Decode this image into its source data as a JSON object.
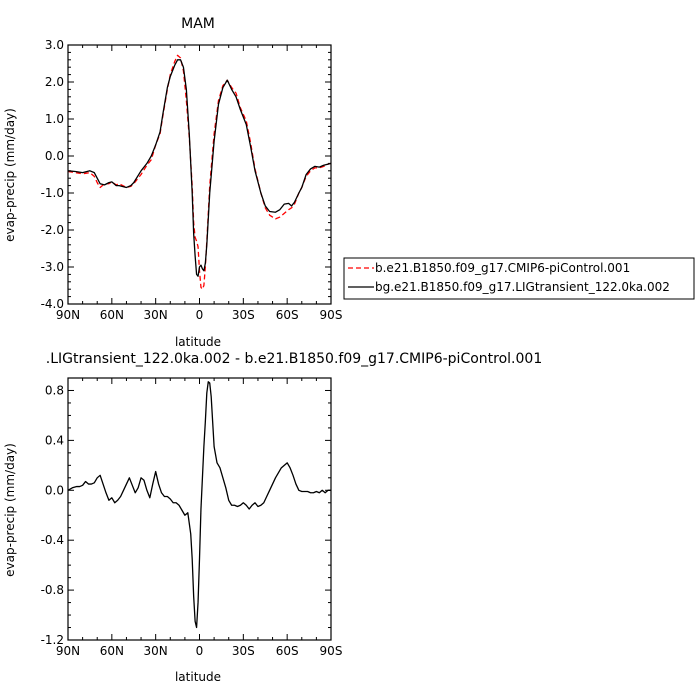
{
  "chart_data": [
    {
      "type": "line",
      "title": "MAM",
      "xlabel": "latitude",
      "ylabel": "evap-precip (mm/day)",
      "xlim": [
        90,
        -90
      ],
      "ylim": [
        -4.0,
        3.0
      ],
      "xticks": [
        90,
        60,
        30,
        0,
        -30,
        -60,
        -90
      ],
      "xtick_labels": [
        "90N",
        "60N",
        "30N",
        "0",
        "30S",
        "60S",
        "90S"
      ],
      "yticks": [
        -4.0,
        -3.0,
        -2.0,
        -1.0,
        0.0,
        1.0,
        2.0,
        3.0
      ],
      "ytick_labels": [
        "-4.0",
        "-3.0",
        "-2.0",
        "-1.0",
        "0.0",
        "1.0",
        "2.0",
        "3.0"
      ],
      "legend_position": "right",
      "series": [
        {
          "name": "b.e21.B1850.f09_g17.CMIP6-piControl.001",
          "color": "#ff0000",
          "dash": "dashed",
          "x": [
            90,
            85,
            80,
            75,
            72,
            70,
            68,
            65,
            62,
            60,
            57,
            55,
            50,
            47,
            45,
            40,
            36,
            33,
            30,
            27,
            25,
            22,
            20,
            17,
            15,
            13,
            11,
            9,
            7,
            5,
            4,
            3,
            2,
            1,
            0,
            -1,
            -2,
            -3,
            -4,
            -5,
            -7,
            -10,
            -13,
            -16,
            -19,
            -22,
            -25,
            -28,
            -32,
            -35,
            -38,
            -42,
            -45,
            -48,
            -52,
            -55,
            -58,
            -61,
            -63,
            -65,
            -68,
            -70,
            -73,
            -76,
            -79,
            -82,
            -85,
            -88,
            -90
          ],
          "y": [
            -0.42,
            -0.45,
            -0.48,
            -0.45,
            -0.55,
            -0.72,
            -0.85,
            -0.75,
            -0.75,
            -0.7,
            -0.78,
            -0.75,
            -0.85,
            -0.82,
            -0.75,
            -0.5,
            -0.25,
            -0.1,
            0.3,
            0.6,
            1.1,
            1.8,
            2.2,
            2.55,
            2.72,
            2.65,
            2.3,
            1.5,
            0.5,
            -0.8,
            -1.8,
            -2.2,
            -2.3,
            -2.45,
            -3.1,
            -3.55,
            -3.6,
            -3.5,
            -3.0,
            -2.3,
            -0.8,
            0.6,
            1.5,
            1.9,
            2.05,
            1.85,
            1.7,
            1.3,
            0.95,
            0.35,
            -0.35,
            -1.0,
            -1.4,
            -1.6,
            -1.7,
            -1.65,
            -1.55,
            -1.45,
            -1.4,
            -1.3,
            -1.0,
            -0.85,
            -0.55,
            -0.4,
            -0.32,
            -0.32,
            -0.28,
            -0.22,
            -0.2
          ]
        },
        {
          "name": "bg.e21.B1850.f09_g17.LIGtransient_122.0ka.002",
          "color": "#000000",
          "dash": "solid",
          "x": [
            90,
            85,
            80,
            75,
            72,
            70,
            68,
            65,
            62,
            60,
            57,
            55,
            50,
            47,
            45,
            40,
            36,
            33,
            30,
            27,
            25,
            22,
            20,
            17,
            15,
            13,
            11,
            9,
            7,
            5,
            4,
            3,
            2,
            1,
            0,
            -1,
            -2,
            -3,
            -4,
            -5,
            -7,
            -10,
            -13,
            -16,
            -19,
            -22,
            -25,
            -28,
            -32,
            -35,
            -38,
            -42,
            -45,
            -48,
            -52,
            -55,
            -58,
            -61,
            -63,
            -65,
            -68,
            -70,
            -73,
            -76,
            -79,
            -82,
            -85,
            -88,
            -90
          ],
          "y": [
            -0.4,
            -0.42,
            -0.45,
            -0.4,
            -0.45,
            -0.6,
            -0.75,
            -0.78,
            -0.72,
            -0.7,
            -0.8,
            -0.8,
            -0.85,
            -0.8,
            -0.72,
            -0.4,
            -0.2,
            0.0,
            0.3,
            0.65,
            1.15,
            1.85,
            2.15,
            2.45,
            2.6,
            2.6,
            2.4,
            1.8,
            0.6,
            -1.0,
            -2.1,
            -2.7,
            -3.2,
            -3.25,
            -3.0,
            -2.95,
            -3.05,
            -3.1,
            -2.9,
            -2.4,
            -1.0,
            0.4,
            1.4,
            1.85,
            2.05,
            1.8,
            1.6,
            1.25,
            0.85,
            0.25,
            -0.4,
            -1.0,
            -1.35,
            -1.5,
            -1.52,
            -1.45,
            -1.3,
            -1.28,
            -1.35,
            -1.25,
            -1.0,
            -0.85,
            -0.5,
            -0.35,
            -0.28,
            -0.3,
            -0.25,
            -0.22,
            -0.2
          ]
        }
      ]
    },
    {
      "type": "line",
      "title": ".LIGtransient_122.0ka.002 - b.e21.B1850.f09_g17.CMIP6-piControl.001",
      "xlabel": "latitude",
      "ylabel": "evap-precip (mm/day)",
      "xlim": [
        90,
        -90
      ],
      "ylim": [
        -1.2,
        0.9
      ],
      "xticks": [
        90,
        60,
        30,
        0,
        -30,
        -60,
        -90
      ],
      "xtick_labels": [
        "90N",
        "60N",
        "30N",
        "0",
        "30S",
        "60S",
        "90S"
      ],
      "yticks": [
        -1.2,
        -0.8,
        -0.4,
        0.0,
        0.4,
        0.8
      ],
      "ytick_labels": [
        "-1.2",
        "-0.8",
        "-0.4",
        "0.0",
        "0.4",
        "0.8"
      ],
      "series": [
        {
          "color": "#000000",
          "dash": "solid",
          "x": [
            90,
            87,
            84,
            82,
            80,
            78,
            76,
            74,
            72,
            70,
            68,
            66,
            64,
            62,
            60,
            58,
            56,
            54,
            52,
            50,
            48,
            46,
            44,
            42,
            40,
            38,
            36,
            34,
            32,
            30,
            28,
            26,
            24,
            22,
            20,
            18,
            16,
            14,
            12,
            10,
            8,
            6,
            5,
            4,
            3,
            2,
            1,
            0,
            -1,
            -2,
            -3,
            -4,
            -5,
            -6,
            -7,
            -8,
            -9,
            -10,
            -12,
            -14,
            -16,
            -18,
            -20,
            -22,
            -24,
            -26,
            -28,
            -30,
            -32,
            -34,
            -36,
            -38,
            -40,
            -42,
            -44,
            -46,
            -48,
            -50,
            -52,
            -54,
            -56,
            -58,
            -60,
            -62,
            -64,
            -66,
            -68,
            -70,
            -72,
            -74,
            -76,
            -78,
            -80,
            -82,
            -84,
            -86,
            -88,
            -90
          ],
          "y": [
            0.0,
            0.02,
            0.03,
            0.03,
            0.04,
            0.07,
            0.05,
            0.05,
            0.06,
            0.1,
            0.12,
            0.05,
            -0.02,
            -0.08,
            -0.06,
            -0.1,
            -0.08,
            -0.05,
            0.0,
            0.05,
            0.1,
            0.04,
            -0.02,
            0.02,
            0.1,
            0.08,
            0.0,
            -0.06,
            0.05,
            0.15,
            0.05,
            -0.02,
            -0.05,
            -0.05,
            -0.07,
            -0.1,
            -0.1,
            -0.12,
            -0.16,
            -0.2,
            -0.18,
            -0.35,
            -0.55,
            -0.85,
            -1.05,
            -1.1,
            -0.9,
            -0.55,
            -0.15,
            0.1,
            0.35,
            0.55,
            0.78,
            0.87,
            0.86,
            0.75,
            0.55,
            0.35,
            0.22,
            0.18,
            0.1,
            0.02,
            -0.08,
            -0.12,
            -0.12,
            -0.13,
            -0.12,
            -0.1,
            -0.12,
            -0.15,
            -0.12,
            -0.1,
            -0.13,
            -0.12,
            -0.1,
            -0.05,
            0.0,
            0.05,
            0.1,
            0.14,
            0.18,
            0.2,
            0.22,
            0.18,
            0.12,
            0.05,
            0.0,
            -0.01,
            -0.01,
            -0.01,
            -0.02,
            -0.02,
            -0.01,
            -0.02,
            0.0,
            -0.02,
            0.0,
            0.0
          ]
        }
      ]
    }
  ]
}
